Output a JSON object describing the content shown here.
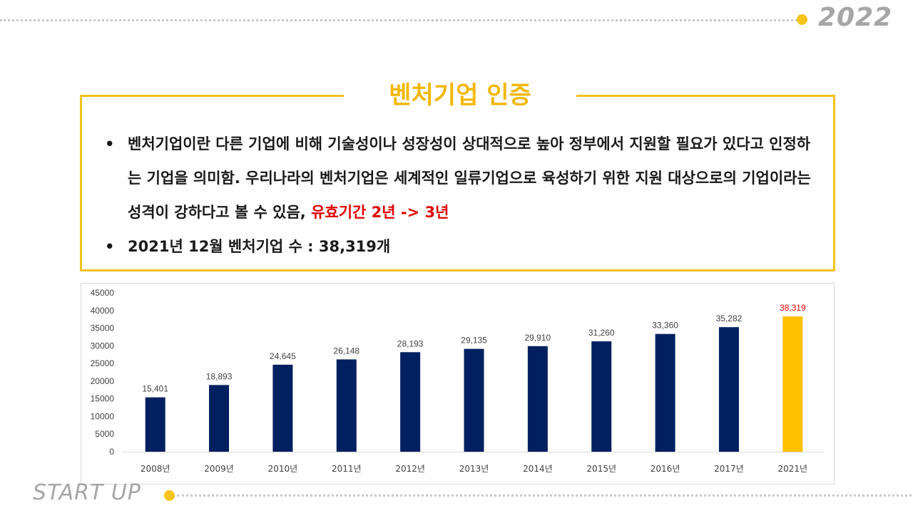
{
  "header": {
    "year": "2022"
  },
  "footer": {
    "label": "START UP"
  },
  "section": {
    "title": "벤처기업 인증",
    "bullet_char": "•",
    "bullet1_text": "벤처기업이란 다른 기업에 비해 기술성이나 성장성이 상대적으로 높아 정부에서 지원할 필요가 있다고 인정하는 기업을 의미함. 우리나라의 벤처기업은 세계적인 일류기업으로 육성하기 위한 지원 대상으로의 기업이라는 성격이 강하다고 볼 수 있음, ",
    "bullet1_highlight": "유효기간 2년 -> 3년",
    "bullet2_text": "2021년 12월 벤처기업 수 : 38,319개"
  },
  "colors": {
    "accent": "#f2c31d",
    "bar": "#002060",
    "highlight_bar": "#ffc000",
    "highlight_text": "#e00000"
  },
  "chart_data": {
    "type": "bar",
    "categories": [
      "2008년",
      "2009년",
      "2010년",
      "2011년",
      "2012년",
      "2013년",
      "2014년",
      "2015년",
      "2016년",
      "2017년",
      "2021년"
    ],
    "values": [
      15401,
      18893,
      24645,
      26148,
      28193,
      29135,
      29910,
      31260,
      33360,
      35282,
      38319
    ],
    "value_labels": [
      "15,401",
      "18,893",
      "24,645",
      "26,148",
      "28,193",
      "29,135",
      "29,910",
      "31,260",
      "33,360",
      "35,282",
      "38,319"
    ],
    "highlight_index": 10,
    "yticks": [
      "0",
      "5000",
      "10000",
      "15000",
      "20000",
      "25000",
      "30000",
      "35000",
      "40000",
      "45000"
    ],
    "ylim": [
      0,
      45000
    ],
    "grid": false,
    "title": "",
    "xlabel": "",
    "ylabel": ""
  }
}
